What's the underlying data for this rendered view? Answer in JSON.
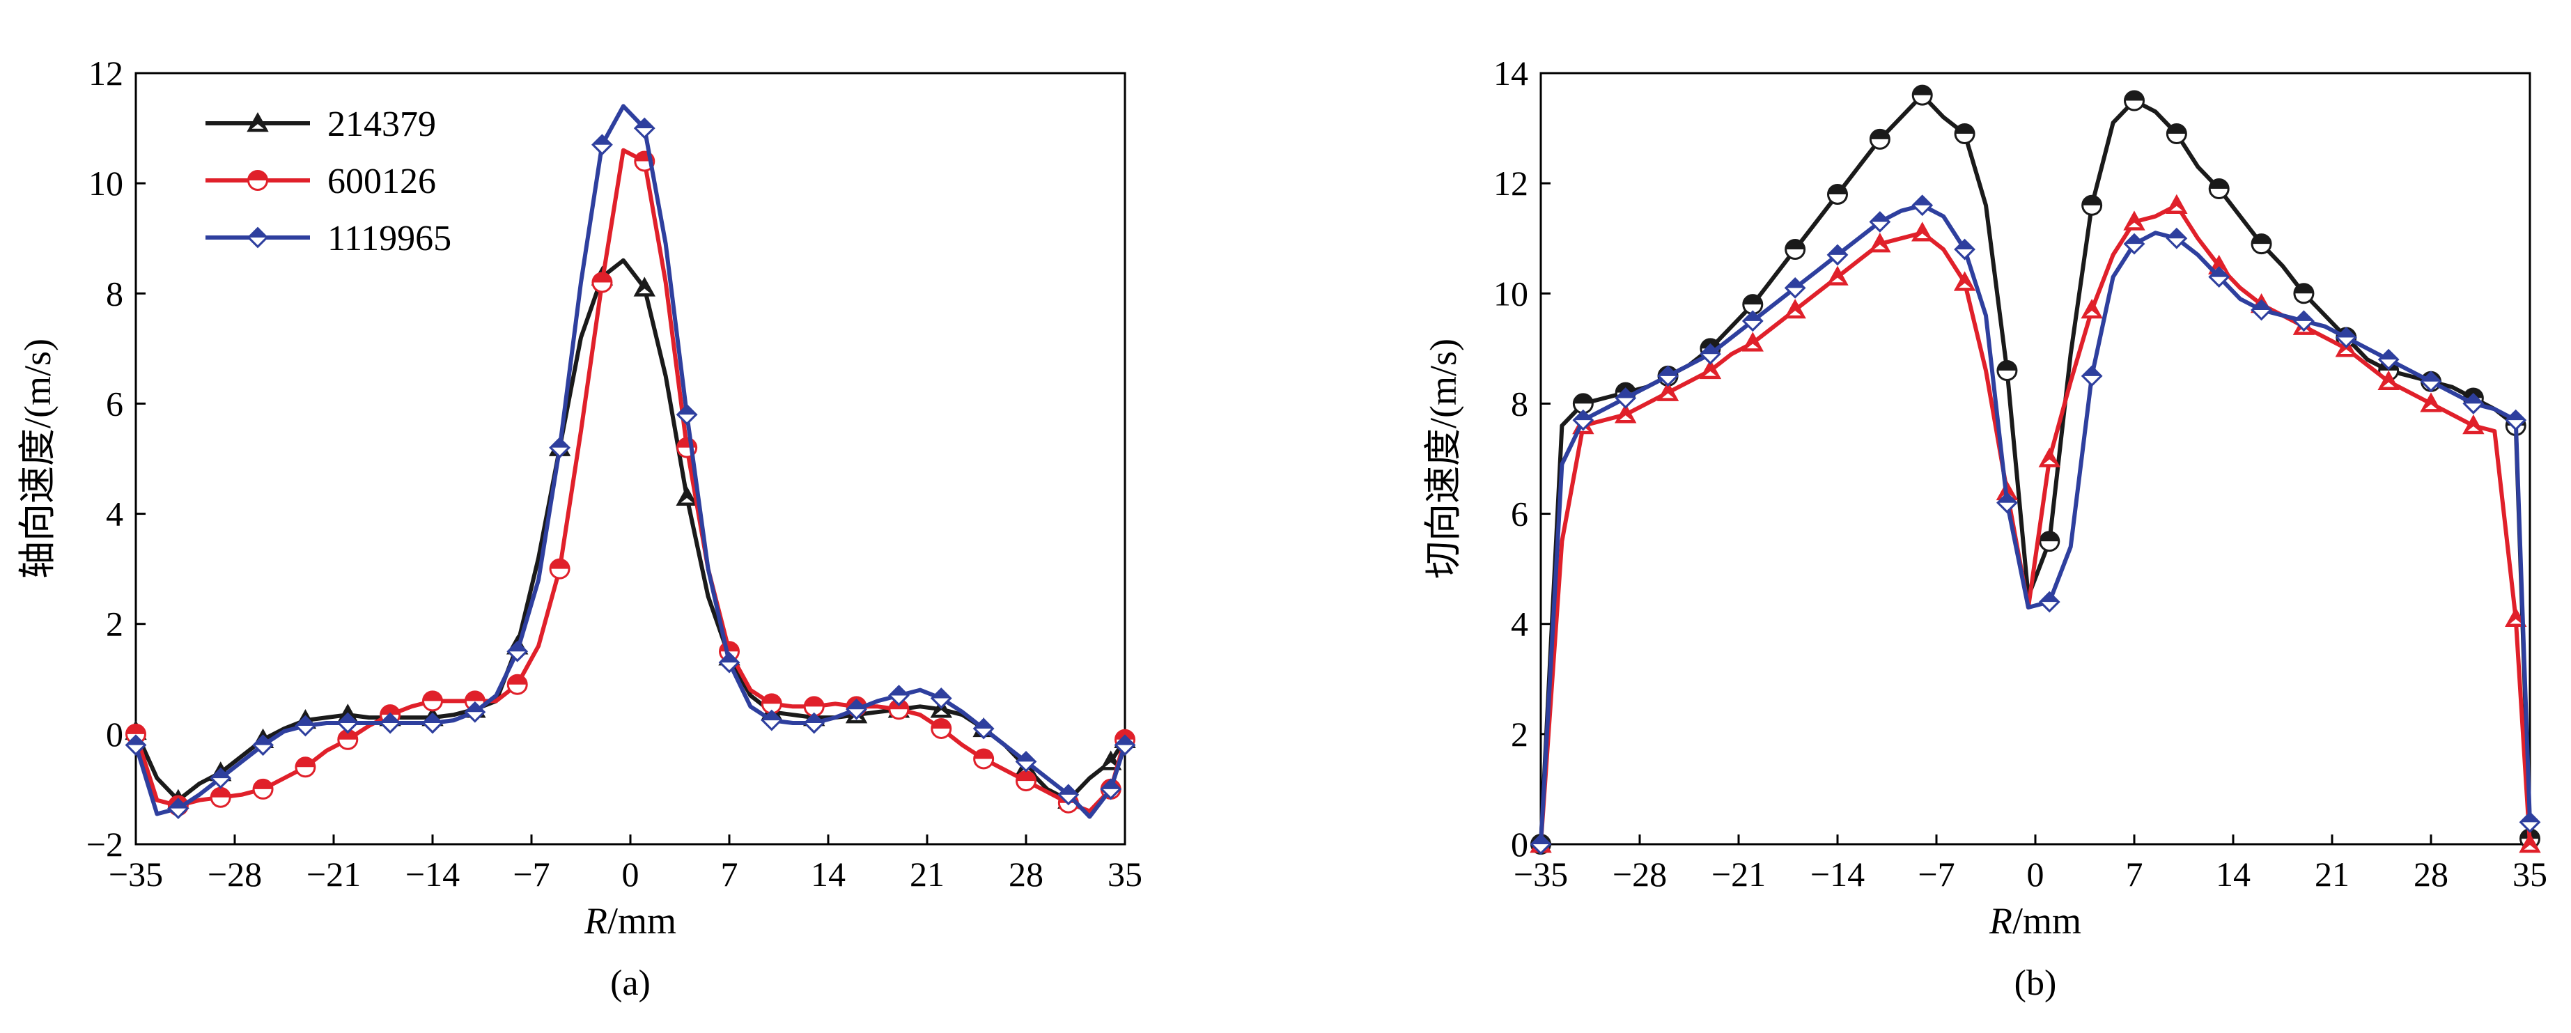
{
  "chart_data": [
    {
      "id": "a",
      "type": "line",
      "caption": "(a)",
      "xlabel_italic": "R",
      "xlabel_unit": "/mm",
      "ylabel": "轴向速度/(m/s)",
      "xlim": [
        -35,
        35
      ],
      "ylim": [
        -2,
        12
      ],
      "xticks": [
        -35,
        -28,
        -21,
        -14,
        -7,
        0,
        7,
        14,
        21,
        28,
        35
      ],
      "yticks": [
        -2,
        0,
        2,
        4,
        6,
        8,
        10,
        12
      ],
      "legend_position": "top-left",
      "series": [
        {
          "name": "214379",
          "color": "#1a1a1a",
          "marker": "triangle",
          "x": [
            -35,
            -33.5,
            -32,
            -30.5,
            -29,
            -27.5,
            -26,
            -24.5,
            -23,
            -21.5,
            -20,
            -18.5,
            -17,
            -15.5,
            -14,
            -12.5,
            -11,
            -9.5,
            -8,
            -6.5,
            -5,
            -3.5,
            -2,
            -0.5,
            1,
            2.5,
            4,
            5.5,
            7,
            8.5,
            10,
            11.5,
            13,
            14.5,
            16,
            17.5,
            19,
            20.5,
            22,
            23.5,
            25,
            26.5,
            28,
            29.5,
            31,
            32.5,
            34,
            35
          ],
          "y": [
            0.05,
            -0.8,
            -1.2,
            -0.9,
            -0.7,
            -0.4,
            -0.1,
            0.1,
            0.25,
            0.3,
            0.35,
            0.3,
            0.3,
            0.3,
            0.3,
            0.35,
            0.45,
            0.6,
            1.6,
            3.2,
            5.2,
            7.2,
            8.3,
            8.6,
            8.1,
            6.5,
            4.3,
            2.5,
            1.4,
            0.7,
            0.4,
            0.35,
            0.3,
            0.3,
            0.35,
            0.4,
            0.45,
            0.5,
            0.45,
            0.35,
            0.1,
            -0.2,
            -0.6,
            -1.0,
            -1.2,
            -0.8,
            -0.5,
            -0.1
          ]
        },
        {
          "name": "600126",
          "color": "#e0202a",
          "marker": "circle",
          "x": [
            -35,
            -33.5,
            -32,
            -30.5,
            -29,
            -27.5,
            -26,
            -24.5,
            -23,
            -21.5,
            -20,
            -18.5,
            -17,
            -15.5,
            -14,
            -12.5,
            -11,
            -9.5,
            -8,
            -6.5,
            -5,
            -3.5,
            -2,
            -0.5,
            1,
            2.5,
            4,
            5.5,
            7,
            8.5,
            10,
            11.5,
            13,
            14.5,
            16,
            17.5,
            19,
            20.5,
            22,
            23.5,
            25,
            26.5,
            28,
            29.5,
            31,
            32.5,
            34,
            35
          ],
          "y": [
            0.0,
            -1.2,
            -1.3,
            -1.2,
            -1.15,
            -1.1,
            -1.0,
            -0.8,
            -0.6,
            -0.3,
            -0.1,
            0.15,
            0.35,
            0.5,
            0.6,
            0.6,
            0.6,
            0.6,
            0.9,
            1.6,
            3.0,
            5.5,
            8.2,
            10.6,
            10.4,
            8.2,
            5.2,
            3.0,
            1.5,
            0.8,
            0.55,
            0.5,
            0.5,
            0.55,
            0.5,
            0.5,
            0.45,
            0.35,
            0.1,
            -0.2,
            -0.45,
            -0.65,
            -0.85,
            -1.05,
            -1.25,
            -1.4,
            -1.0,
            -0.1
          ]
        },
        {
          "name": "1119965",
          "color": "#2e3f9e",
          "marker": "diamond",
          "x": [
            -35,
            -33.5,
            -32,
            -30.5,
            -29,
            -27.5,
            -26,
            -24.5,
            -23,
            -21.5,
            -20,
            -18.5,
            -17,
            -15.5,
            -14,
            -12.5,
            -11,
            -9.5,
            -8,
            -6.5,
            -5,
            -3.5,
            -2,
            -0.5,
            1,
            2.5,
            4,
            5.5,
            7,
            8.5,
            10,
            11.5,
            13,
            14.5,
            16,
            17.5,
            19,
            20.5,
            22,
            23.5,
            25,
            26.5,
            28,
            29.5,
            31,
            32.5,
            34,
            35
          ],
          "y": [
            -0.2,
            -1.45,
            -1.35,
            -1.1,
            -0.8,
            -0.5,
            -0.2,
            0.05,
            0.15,
            0.2,
            0.2,
            0.2,
            0.2,
            0.2,
            0.2,
            0.25,
            0.4,
            0.7,
            1.5,
            2.8,
            5.2,
            8.2,
            10.7,
            11.4,
            11.0,
            8.9,
            5.8,
            3.0,
            1.3,
            0.5,
            0.25,
            0.2,
            0.2,
            0.3,
            0.45,
            0.6,
            0.7,
            0.8,
            0.65,
            0.4,
            0.1,
            -0.2,
            -0.5,
            -0.8,
            -1.1,
            -1.5,
            -1.0,
            -0.2
          ]
        }
      ]
    },
    {
      "id": "b",
      "type": "line",
      "caption": "(b)",
      "xlabel_italic": "R",
      "xlabel_unit": "/mm",
      "ylabel": "切向速度/(m/s)",
      "xlim": [
        -35,
        35
      ],
      "ylim": [
        0,
        14
      ],
      "xticks": [
        -35,
        -28,
        -21,
        -14,
        -7,
        0,
        7,
        14,
        21,
        28,
        35
      ],
      "yticks": [
        0,
        2,
        4,
        6,
        8,
        10,
        12,
        14
      ],
      "series": [
        {
          "color": "#1a1a1a",
          "marker": "circle",
          "x": [
            -35,
            -33.5,
            -32,
            -30.5,
            -29,
            -27.5,
            -26,
            -24.5,
            -23,
            -21.5,
            -20,
            -18.5,
            -17,
            -15.5,
            -14,
            -12.5,
            -11,
            -9.5,
            -8,
            -6.5,
            -5,
            -3.5,
            -2,
            -0.5,
            1,
            2.5,
            4,
            5.5,
            7,
            8.5,
            10,
            11.5,
            13,
            14.5,
            16,
            17.5,
            19,
            20.5,
            22,
            23.5,
            25,
            26.5,
            28,
            29.5,
            31,
            32.5,
            34,
            35
          ],
          "y": [
            0.0,
            7.6,
            8.0,
            8.1,
            8.2,
            8.3,
            8.5,
            8.7,
            9.0,
            9.4,
            9.8,
            10.3,
            10.8,
            11.3,
            11.8,
            12.3,
            12.8,
            13.2,
            13.6,
            13.2,
            12.9,
            11.6,
            8.6,
            4.5,
            5.5,
            8.9,
            11.6,
            13.1,
            13.5,
            13.3,
            12.9,
            12.3,
            11.9,
            11.4,
            10.9,
            10.5,
            10.0,
            9.6,
            9.2,
            8.8,
            8.6,
            8.5,
            8.4,
            8.3,
            8.1,
            7.9,
            7.6,
            0.1
          ]
        },
        {
          "color": "#e0202a",
          "marker": "triangle",
          "x": [
            -35,
            -33.5,
            -32,
            -30.5,
            -29,
            -27.5,
            -26,
            -24.5,
            -23,
            -21.5,
            -20,
            -18.5,
            -17,
            -15.5,
            -14,
            -12.5,
            -11,
            -9.5,
            -8,
            -6.5,
            -5,
            -3.5,
            -2,
            -0.5,
            1,
            2.5,
            4,
            5.5,
            7,
            8.5,
            10,
            11.5,
            13,
            14.5,
            16,
            17.5,
            19,
            20.5,
            22,
            23.5,
            25,
            26.5,
            28,
            29.5,
            31,
            32.5,
            34,
            35
          ],
          "y": [
            0.0,
            5.5,
            7.6,
            7.7,
            7.8,
            8.0,
            8.2,
            8.4,
            8.6,
            8.9,
            9.1,
            9.4,
            9.7,
            10.0,
            10.3,
            10.6,
            10.9,
            11.0,
            11.1,
            10.8,
            10.2,
            8.6,
            6.4,
            4.3,
            7.0,
            8.4,
            9.7,
            10.7,
            11.3,
            11.4,
            11.6,
            11.0,
            10.5,
            10.1,
            9.8,
            9.6,
            9.4,
            9.2,
            9.0,
            8.7,
            8.4,
            8.2,
            8.0,
            7.8,
            7.6,
            7.5,
            4.1,
            0.0
          ]
        },
        {
          "color": "#2e3f9e",
          "marker": "diamond",
          "x": [
            -35,
            -33.5,
            -32,
            -30.5,
            -29,
            -27.5,
            -26,
            -24.5,
            -23,
            -21.5,
            -20,
            -18.5,
            -17,
            -15.5,
            -14,
            -12.5,
            -11,
            -9.5,
            -8,
            -6.5,
            -5,
            -3.5,
            -2,
            -0.5,
            1,
            2.5,
            4,
            5.5,
            7,
            8.5,
            10,
            11.5,
            13,
            14.5,
            16,
            17.5,
            19,
            20.5,
            22,
            23.5,
            25,
            26.5,
            28,
            29.5,
            31,
            32.5,
            34,
            35
          ],
          "y": [
            0.0,
            6.9,
            7.7,
            7.9,
            8.1,
            8.3,
            8.5,
            8.7,
            8.9,
            9.2,
            9.5,
            9.8,
            10.1,
            10.4,
            10.7,
            11.0,
            11.3,
            11.5,
            11.6,
            11.4,
            10.8,
            9.6,
            6.2,
            4.3,
            4.4,
            5.4,
            8.5,
            10.3,
            10.9,
            11.1,
            11.0,
            10.7,
            10.3,
            9.9,
            9.7,
            9.6,
            9.5,
            9.4,
            9.2,
            9.0,
            8.8,
            8.6,
            8.4,
            8.2,
            8.0,
            7.9,
            7.7,
            0.4
          ]
        }
      ]
    }
  ]
}
